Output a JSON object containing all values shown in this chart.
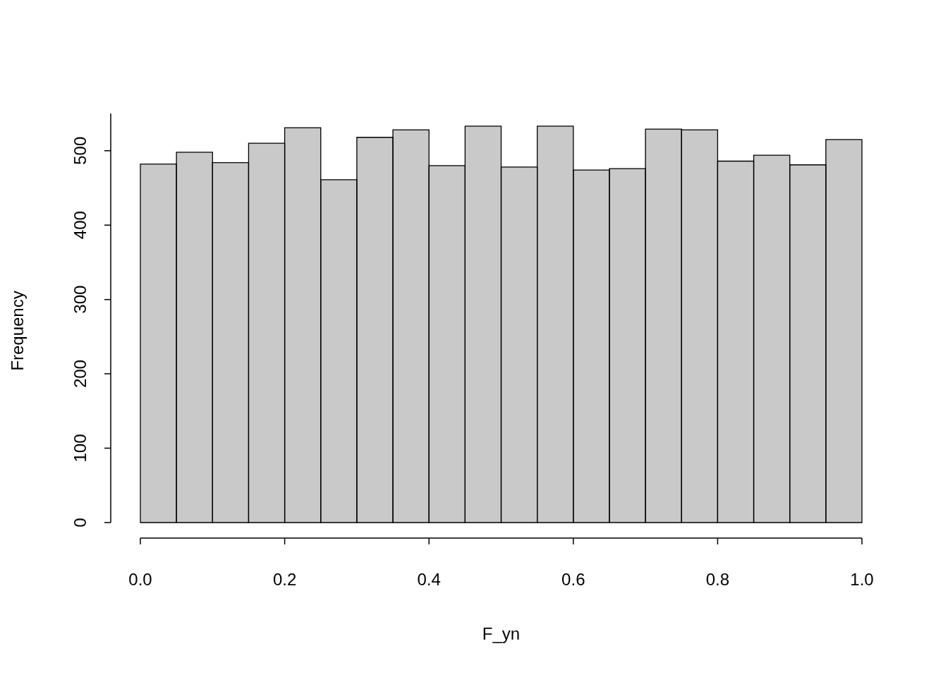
{
  "chart_data": {
    "type": "histogram",
    "xlabel": "F_yn",
    "ylabel": "Frequency",
    "color": "#c9c9c9",
    "bins": [
      0,
      0.05,
      0.1,
      0.15,
      0.2,
      0.25,
      0.3,
      0.35,
      0.4,
      0.45,
      0.5,
      0.55,
      0.6,
      0.65,
      0.7,
      0.75,
      0.8,
      0.85,
      0.9,
      0.95,
      1
    ],
    "values": [
      482,
      498,
      484,
      510,
      531,
      461,
      518,
      528,
      480,
      533,
      478,
      533,
      474,
      476,
      529,
      528,
      486,
      494,
      481,
      515
    ],
    "xlim": [
      0,
      1
    ],
    "ylim": [
      0,
      550
    ],
    "xticks": [
      {
        "value": 0,
        "label": "0.0"
      },
      0.2,
      0.4,
      0.6,
      0.8,
      {
        "value": 1,
        "label": "1.0"
      }
    ],
    "yticks": [
      0,
      100,
      200,
      300,
      400,
      500
    ],
    "grid": false,
    "legend": false
  }
}
